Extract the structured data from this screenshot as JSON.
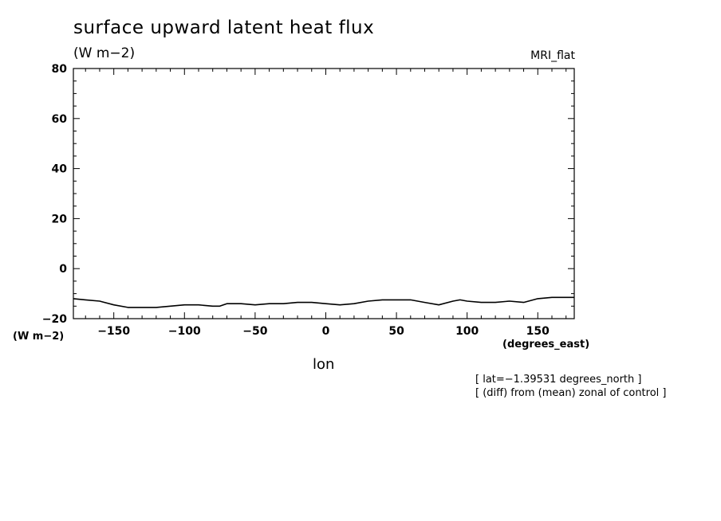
{
  "chart_data": {
    "type": "line",
    "title": "surface upward latent heat flux",
    "y_units": "(W m−2)",
    "dataset": "MRI_flat",
    "xlabel": "lon",
    "x_units": "(degrees_east)",
    "notes": [
      "[ lat=−1.39531 degrees_north ]",
      "[ (diff) from (mean) zonal of control ]"
    ],
    "xlim": [
      -178.6,
      175.8
    ],
    "ylim": [
      -20,
      80
    ],
    "x_ticks": [
      -150,
      -100,
      -50,
      0,
      50,
      100,
      150
    ],
    "x_tick_labels": [
      "−150",
      "−100",
      "−50",
      "0",
      "50",
      "100",
      "150"
    ],
    "y_ticks": [
      80,
      60,
      40,
      20,
      0,
      -20
    ],
    "y_tick_labels": [
      "80",
      "60",
      "40",
      "20",
      "0",
      "−20"
    ],
    "grid": false,
    "series": [
      {
        "x": [
          -178.6,
          -170,
          -160,
          -150,
          -140,
          -130,
          -120,
          -110,
          -100,
          -90,
          -80,
          -75,
          -70,
          -60,
          -50,
          -40,
          -30,
          -20,
          -10,
          0,
          10,
          20,
          30,
          40,
          50,
          60,
          70,
          80,
          90,
          95,
          100,
          110,
          120,
          130,
          140,
          150,
          160,
          175.8
        ],
        "y": [
          -12,
          -12.5,
          -13,
          -14.5,
          -15.5,
          -15.5,
          -15.5,
          -15,
          -14.5,
          -14.5,
          -15,
          -15,
          -14,
          -14,
          -14.5,
          -14,
          -14,
          -13.5,
          -13.5,
          -14,
          -14.5,
          -14,
          -13,
          -12.5,
          -12.5,
          -12.5,
          -13.5,
          -14.5,
          -13,
          -12.5,
          -13,
          -13.5,
          -13.5,
          -13,
          -13.5,
          -12,
          -11.5,
          -11.5
        ]
      }
    ]
  }
}
